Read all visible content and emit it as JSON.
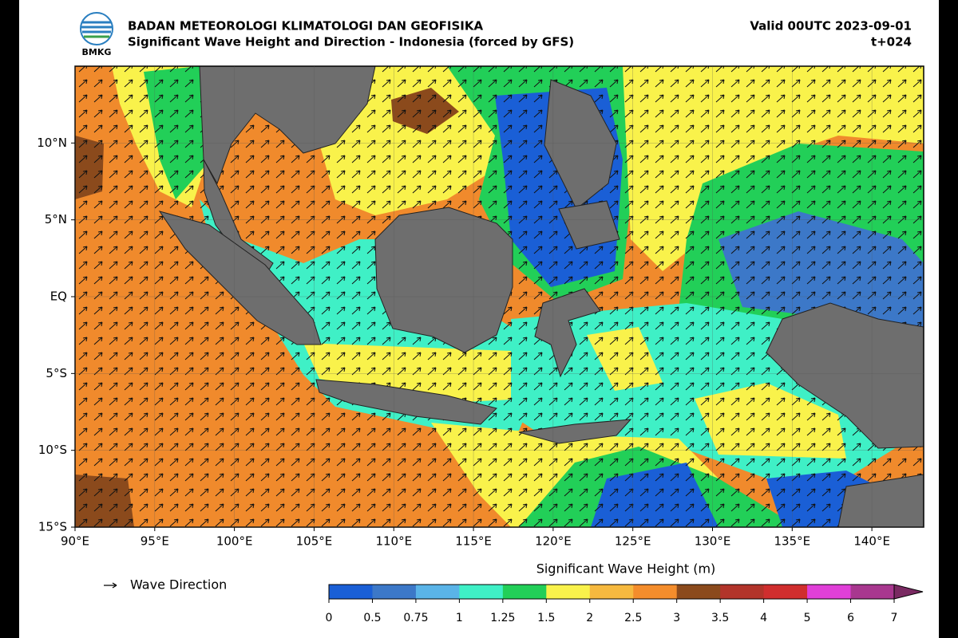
{
  "header": {
    "logo_text": "BMKG",
    "title": "BADAN METEOROLOGI KLIMATOLOGI DAN GEOFISIKA",
    "subtitle": "Significant Wave Height and Direction - Indonesia (forced by GFS)",
    "valid": "Valid 00UTC 2023-09-01",
    "lead": "t+024"
  },
  "map": {
    "lonlim": [
      90,
      143.25
    ],
    "latlim": [
      -15,
      15
    ],
    "lon_ticks": [
      {
        "value": 90,
        "label": "90°E"
      },
      {
        "value": 95,
        "label": "95°E"
      },
      {
        "value": 100,
        "label": "100°E"
      },
      {
        "value": 105,
        "label": "105°E"
      },
      {
        "value": 110,
        "label": "110°E"
      },
      {
        "value": 115,
        "label": "115°E"
      },
      {
        "value": 120,
        "label": "120°E"
      },
      {
        "value": 125,
        "label": "125°E"
      },
      {
        "value": 130,
        "label": "130°E"
      },
      {
        "value": 135,
        "label": "135°E"
      },
      {
        "value": 140,
        "label": "140°E"
      }
    ],
    "lat_ticks": [
      {
        "value": 10,
        "label": "10°N"
      },
      {
        "value": 5,
        "label": "5°N"
      },
      {
        "value": 0,
        "label": "EQ"
      },
      {
        "value": -5,
        "label": "5°S"
      },
      {
        "value": -10,
        "label": "10°S"
      },
      {
        "value": -15,
        "label": "15°S"
      }
    ]
  },
  "legend": {
    "arrow_label": "Wave Direction"
  },
  "colorbar": {
    "label": "Significant Wave Height (m)",
    "ticks": [
      0,
      0.5,
      0.75,
      1,
      1.25,
      1.5,
      2,
      2.5,
      3,
      3.5,
      4,
      5,
      6,
      7
    ],
    "colors": [
      "#1a5fd6",
      "#3c78c8",
      "#5ab4e8",
      "#3ff0c6",
      "#22cf58",
      "#f9f24b",
      "#f6b93f",
      "#f48d2c",
      "#8b4a1c",
      "#b2342a",
      "#d02e2e",
      "#e03fd8",
      "#a8378f"
    ],
    "extend_color": "#7a2a62"
  }
}
